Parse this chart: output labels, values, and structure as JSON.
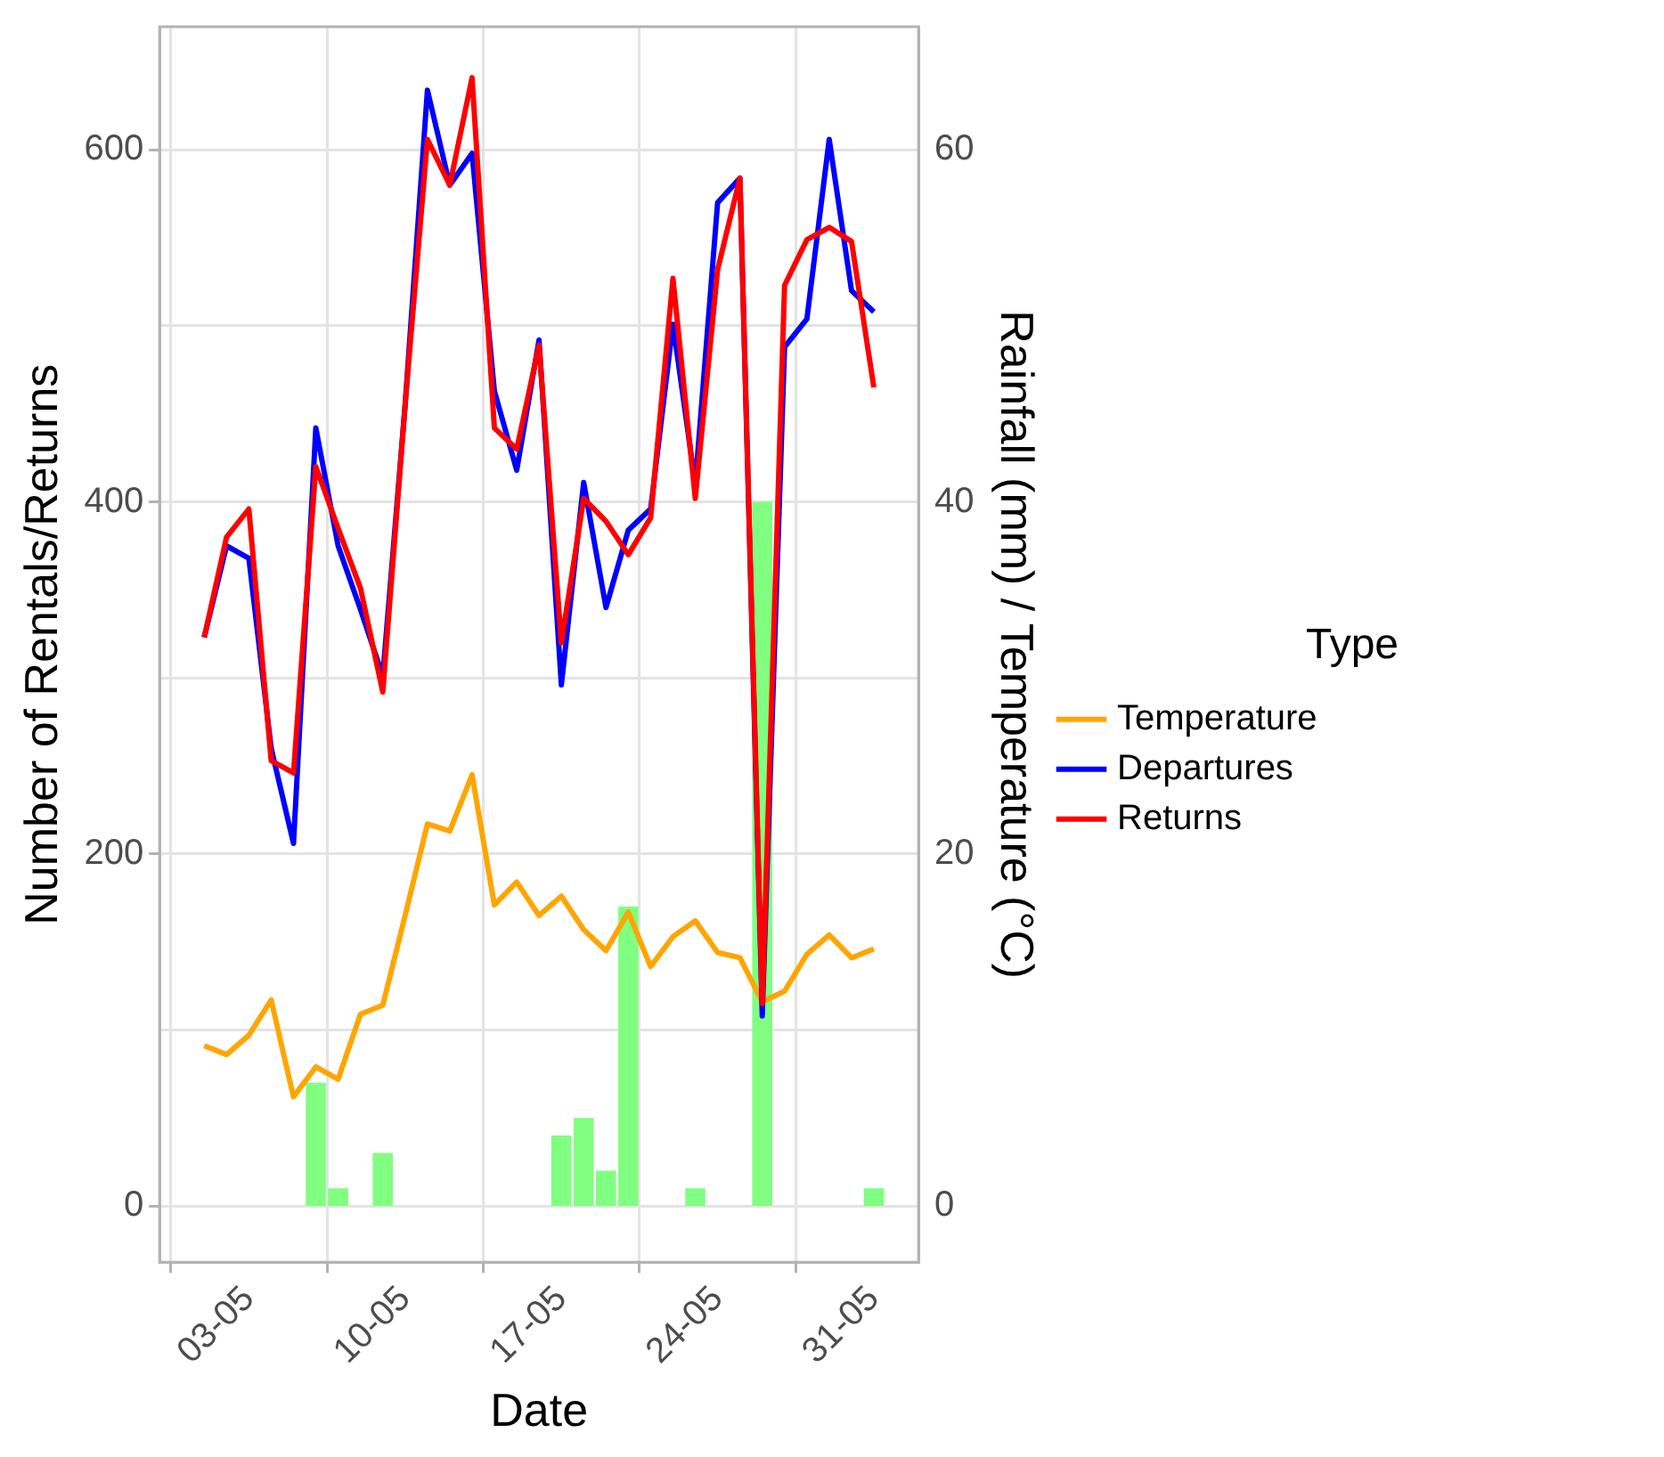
{
  "chart_data": {
    "type": "line",
    "xlabel": "Date",
    "ylabel": "Number of Rentals/Returns",
    "y2label": "Rainfall (mm) / Temperature (°C)",
    "legend_title": "Type",
    "legend": "right",
    "grid": true,
    "marker": "none",
    "line_style": "solid",
    "x": [
      "--05-01",
      "--05-02",
      "--05-03",
      "--05-04",
      "--05-05",
      "--05-06",
      "--05-07",
      "--05-08",
      "--05-09",
      "--05-10",
      "--05-11",
      "--05-12",
      "--05-13",
      "--05-14",
      "--05-15",
      "--05-16",
      "--05-17",
      "--05-18",
      "--05-19",
      "--05-20",
      "--05-21",
      "--05-22",
      "--05-23",
      "--05-24",
      "--05-25",
      "--05-26",
      "--05-27",
      "--05-28",
      "--05-29",
      "--05-30",
      "--05-31"
    ],
    "xlim": [
      "--04-29",
      "--06-02"
    ],
    "xticks": [
      {
        "value": "--05-03",
        "label": "03-05"
      },
      {
        "value": "--05-10",
        "label": "10-05"
      },
      {
        "value": "--05-17",
        "label": "17-05"
      },
      {
        "value": "--05-24",
        "label": "24-05"
      },
      {
        "value": "--05-31",
        "label": "31-05"
      }
    ],
    "ylim": [
      -32,
      670
    ],
    "yticks": [
      0,
      {
        "value": 100,
        "label": null
      },
      200,
      {
        "value": 300,
        "label": null
      },
      400,
      {
        "value": 500,
        "label": null
      },
      600
    ],
    "y2lim": [
      -3.2,
      67
    ],
    "y2ticks": [
      0,
      20,
      40,
      60
    ],
    "series": [
      {
        "type": "bar",
        "axis": "y2",
        "color": "#80ff80",
        "values": [
          0,
          0,
          0,
          0,
          0,
          7,
          1,
          0,
          3,
          0,
          0,
          0,
          0,
          0,
          0,
          0,
          4,
          5,
          2,
          17,
          0,
          0,
          1,
          0,
          0,
          40,
          0,
          0,
          0,
          0,
          1
        ]
      },
      {
        "name": "Temperature",
        "axis": "y2",
        "color": "#ffa500",
        "values": [
          9.1,
          8.6,
          9.7,
          11.7,
          6.2,
          7.9,
          7.2,
          10.9,
          11.4,
          16.5,
          21.7,
          21.3,
          24.5,
          17.1,
          18.4,
          16.5,
          17.6,
          15.7,
          14.5,
          16.7,
          13.6,
          15.3,
          16.2,
          14.4,
          14.1,
          11.6,
          12.2,
          14.3,
          15.4,
          14.1,
          14.6
        ]
      },
      {
        "name": "Departures",
        "color": "#0000ff",
        "values": [
          323,
          375,
          368,
          260,
          206,
          442,
          375,
          339,
          301,
          455,
          634,
          580,
          598,
          463,
          418,
          492,
          296,
          411,
          340,
          384,
          396,
          501,
          410,
          570,
          584,
          108,
          488,
          504,
          606,
          520,
          508
        ]
      },
      {
        "name": "Returns",
        "color": "#ff0000",
        "values": [
          323,
          380,
          396,
          253,
          246,
          420,
          385,
          351,
          292,
          455,
          606,
          580,
          641,
          442,
          430,
          489,
          320,
          402,
          389,
          370,
          391,
          527,
          402,
          532,
          584,
          115,
          523,
          549,
          556,
          548,
          465
        ]
      }
    ]
  }
}
